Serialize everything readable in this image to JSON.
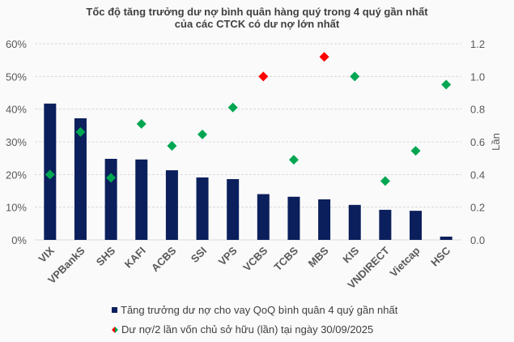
{
  "chart_data": {
    "type": "bar",
    "title": "Tốc độ tăng trưởng dư nợ bình quân hàng quý trong 4 quý gần nhất",
    "subtitle": "của các CTCK có dư nợ lớn nhất",
    "categories": [
      "VIX",
      "VPBankS",
      "SHS",
      "KAFI",
      "ACBS",
      "SSI",
      "VPS",
      "VCBS",
      "TCBS",
      "MBS",
      "KIS",
      "VNDIRECT",
      "Vietcap",
      "HSC"
    ],
    "series": [
      {
        "name": "Tăng trưởng dư nợ cho vay QoQ bình quân 4 quý gần nhất",
        "type": "bar",
        "axis": "left",
        "color": "#0b1f5c",
        "values": [
          41.7,
          37.2,
          24.8,
          24.6,
          21.3,
          19.1,
          18.6,
          14.0,
          13.2,
          12.4,
          10.7,
          9.2,
          8.9,
          1.0
        ]
      },
      {
        "name": "Dư nợ/2 lần vốn chủ sở hữu (lần) tại ngày 30/09/2025",
        "type": "scatter",
        "axis": "right",
        "color": "#00a651",
        "highlight_color": "#ff0000",
        "values": [
          0.4,
          0.66,
          0.38,
          0.71,
          0.575,
          0.645,
          0.81,
          1.0,
          0.49,
          1.12,
          1.0,
          0.36,
          0.545,
          0.95
        ],
        "highlighted": [
          "VCBS",
          "MBS"
        ]
      }
    ],
    "y_left": {
      "range": [
        0,
        60
      ],
      "ticks": [
        "0%",
        "10%",
        "20%",
        "30%",
        "40%",
        "50%",
        "60%"
      ]
    },
    "y_right": {
      "label": "Lần",
      "range": [
        0,
        1.2
      ],
      "ticks": [
        "0.0",
        "0.2",
        "0.4",
        "0.6",
        "0.8",
        "1.0",
        "1.2"
      ]
    },
    "grid": true,
    "legend": "bottom"
  }
}
